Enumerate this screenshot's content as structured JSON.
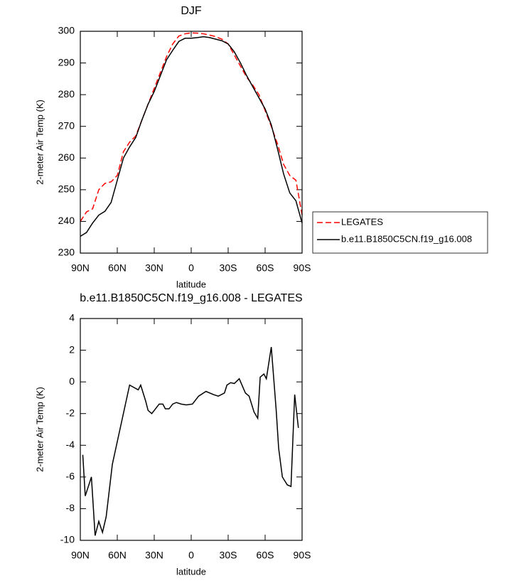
{
  "chart_data": [
    {
      "type": "line",
      "title": "DJF",
      "x_label": "latitude",
      "y_label": "2-meter Air Temp (K)",
      "x": [
        90,
        85,
        80,
        75,
        70,
        65,
        60,
        55,
        50,
        45,
        40,
        35,
        30,
        25,
        20,
        15,
        10,
        5,
        0,
        -5,
        -10,
        -15,
        -20,
        -25,
        -30,
        -35,
        -40,
        -45,
        -50,
        -55,
        -60,
        -65,
        -70,
        -75,
        -80,
        -85,
        -90
      ],
      "series": [
        {
          "name": "LEGATES",
          "color": "#ff0000",
          "dashed": true,
          "values": [
            240,
            243,
            244,
            250,
            252,
            252.5,
            254.5,
            262,
            265,
            267,
            272,
            277,
            282,
            287,
            292,
            296,
            298.5,
            299.2,
            299.5,
            299.4,
            299.2,
            298.8,
            298.3,
            297.5,
            296,
            292.5,
            289,
            285.5,
            283,
            280,
            275,
            270,
            264.5,
            258,
            254.5,
            253,
            242
          ]
        },
        {
          "name": "b.e11.B1850C5CN.f19_g16.008",
          "color": "#000000",
          "dashed": false,
          "values": [
            235.3,
            236.5,
            239.5,
            242,
            243.2,
            246,
            253,
            260,
            263.5,
            266.5,
            272,
            277,
            281,
            286,
            291,
            294,
            296.8,
            297.8,
            297.8,
            298,
            298.3,
            298,
            297.5,
            297,
            296,
            293.5,
            290,
            286,
            282.5,
            279,
            275.5,
            270.5,
            263,
            255,
            249,
            246.5,
            239.5
          ]
        }
      ],
      "xlim": [
        90,
        -90
      ],
      "xticks": [
        {
          "value": 90,
          "label": "90N"
        },
        {
          "value": 60,
          "label": "60N"
        },
        {
          "value": 30,
          "label": "30N"
        },
        0,
        {
          "value": -30,
          "label": "30S"
        },
        {
          "value": -60,
          "label": "60S"
        },
        {
          "value": -90,
          "label": "90S"
        }
      ],
      "ylim": [
        230,
        300
      ],
      "yticks": [
        230,
        240,
        250,
        260,
        270,
        280,
        290,
        300
      ],
      "legend": "right"
    },
    {
      "type": "line",
      "title": "b.e11.B1850C5CN.f19_g16.008 - LEGATES",
      "x_label": "latitude",
      "y_label": "2-meter Air Temp (K)",
      "x": [
        88,
        86,
        81,
        78,
        75,
        72,
        69,
        64,
        57,
        50,
        43,
        41,
        37,
        35,
        32,
        29,
        26,
        23,
        21,
        18,
        15,
        12,
        8,
        4,
        -1,
        -6,
        -12,
        -18,
        -22,
        -27,
        -29,
        -32,
        -35,
        -39,
        -44,
        -47,
        -51,
        -54,
        -56,
        -59,
        -61,
        -65,
        -69,
        -71,
        -74,
        -78,
        -81,
        -84,
        -87
      ],
      "values": [
        -4.6,
        -7.2,
        -6.0,
        -9.7,
        -8.8,
        -9.5,
        -8.5,
        -5.2,
        -2.7,
        -0.2,
        -0.5,
        -0.2,
        -1.2,
        -1.8,
        -2.0,
        -1.7,
        -1.4,
        -1.4,
        -1.7,
        -1.7,
        -1.4,
        -1.3,
        -1.4,
        -1.45,
        -1.4,
        -0.9,
        -0.6,
        -0.8,
        -0.9,
        -0.7,
        -0.2,
        -0.05,
        -0.1,
        0.2,
        -0.7,
        -0.9,
        -1.9,
        -2.3,
        0.3,
        0.5,
        0.2,
        2.2,
        -1.8,
        -4.2,
        -6.0,
        -6.5,
        -6.6,
        -0.8,
        -2.9
      ],
      "color": "#000000",
      "xlim": [
        90,
        -90
      ],
      "xticks": [
        {
          "value": 90,
          "label": "90N"
        },
        {
          "value": 60,
          "label": "60N"
        },
        {
          "value": 30,
          "label": "30N"
        },
        0,
        {
          "value": -30,
          "label": "30S"
        },
        {
          "value": -60,
          "label": "60S"
        },
        {
          "value": -90,
          "label": "90S"
        }
      ],
      "ylim": [
        -10,
        4
      ],
      "yticks": [
        -10,
        -8,
        -6,
        -4,
        -2,
        0,
        2,
        4
      ]
    }
  ]
}
